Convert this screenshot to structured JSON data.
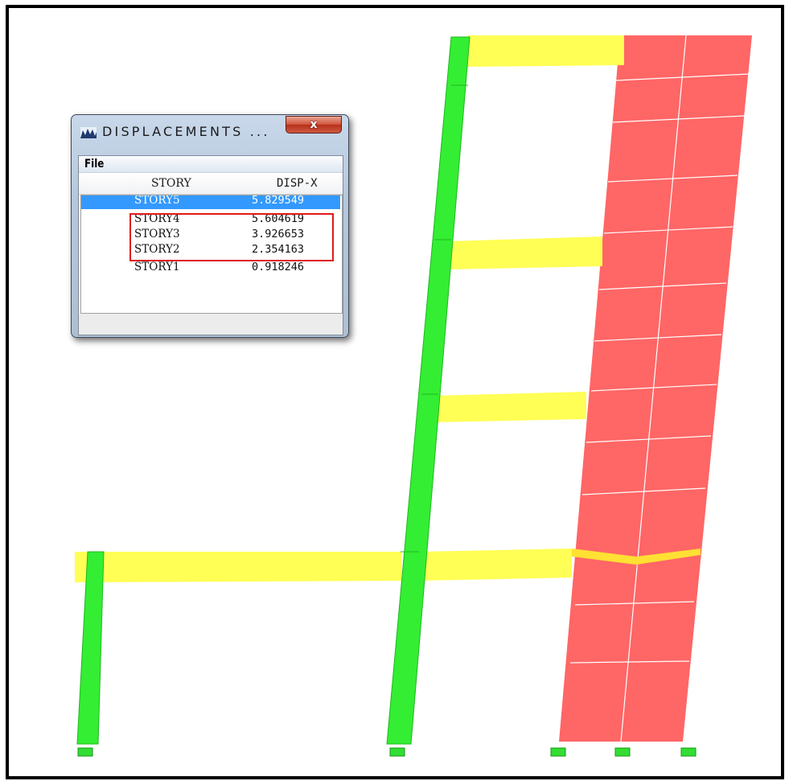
{
  "window": {
    "title": "DISPLACEMENTS ...",
    "close_label": "x",
    "icon": "chart-app-icon"
  },
  "menu": {
    "file_label": "File"
  },
  "table": {
    "columns": [
      "STORY",
      "DISP-X"
    ],
    "rows": [
      {
        "story": "STORY5",
        "disp_x": "5.829549",
        "selected": true
      },
      {
        "story": "STORY4",
        "disp_x": "5.604619"
      },
      {
        "story": "STORY3",
        "disp_x": "3.926653"
      },
      {
        "story": "STORY2",
        "disp_x": "2.354163"
      },
      {
        "story": "STORY1",
        "disp_x": "0.918246"
      }
    ]
  },
  "colors": {
    "columns": "#33ee33",
    "beams": "#ffff55",
    "wall": "#ff6666",
    "supports": "#33dd33",
    "highlight": "#e01a1a"
  }
}
